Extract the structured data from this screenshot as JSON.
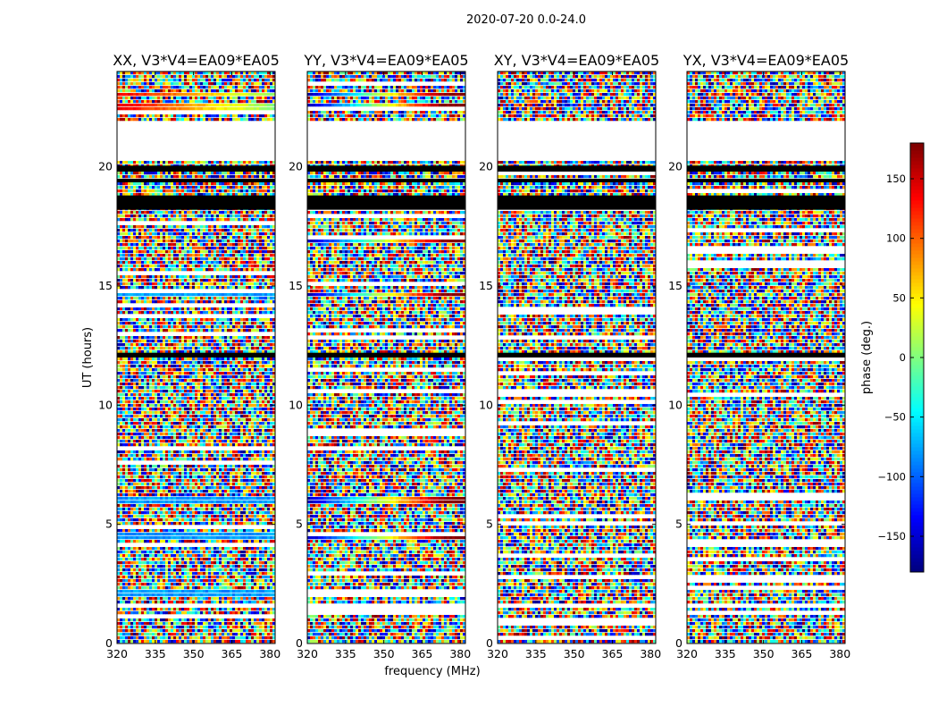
{
  "figure": {
    "suptitle": "2020-07-20 0.0-24.0",
    "xlabel": "frequency (MHz)",
    "ylabel": "UT (hours)",
    "colorbar_label": "phase (deg.)"
  },
  "chart_data": {
    "type": "heatmap",
    "suptitle": "2020-07-20 0.0-24.0",
    "xlabel": "frequency (MHz)",
    "ylabel": "UT (hours)",
    "xlim": [
      320,
      382
    ],
    "ylim": [
      0,
      24
    ],
    "xticks": [
      320,
      335,
      350,
      365,
      380
    ],
    "yticks": [
      0,
      5,
      10,
      15,
      20
    ],
    "colormap": "jet",
    "colorbar": {
      "label": "phase (deg.)",
      "range": [
        -180,
        180
      ],
      "ticks": [
        -150,
        -100,
        -50,
        0,
        50,
        100,
        150
      ],
      "tick_labels": [
        "−150",
        "−100",
        "−50",
        "0",
        "50",
        "100",
        "150"
      ]
    },
    "panels": [
      {
        "title": "XX, V3*V4=EA09*EA05",
        "coherent_bands_ut": [
          2.1,
          4.5,
          6.0,
          14.6,
          22.5,
          23.0
        ]
      },
      {
        "title": "YY, V3*V4=EA09*EA05",
        "coherent_bands_ut": [
          2.1,
          4.5,
          6.0,
          14.6,
          16.9,
          22.5,
          23.0
        ]
      },
      {
        "title": "XY, V3*V4=EA09*EA05",
        "coherent_bands_ut": []
      },
      {
        "title": "YX, V3*V4=EA09*EA05",
        "coherent_bands_ut": []
      }
    ],
    "flagged_ranges_ut": [
      [
        20.3,
        21.9
      ],
      [
        1.55,
        1.65
      ],
      [
        7.3,
        7.4
      ],
      [
        12.4,
        12.5
      ]
    ],
    "black_ranges_ut": [
      [
        18.2,
        18.8
      ],
      [
        19.35,
        19.5
      ],
      [
        19.8,
        20.05
      ],
      [
        12.0,
        12.2
      ]
    ]
  }
}
